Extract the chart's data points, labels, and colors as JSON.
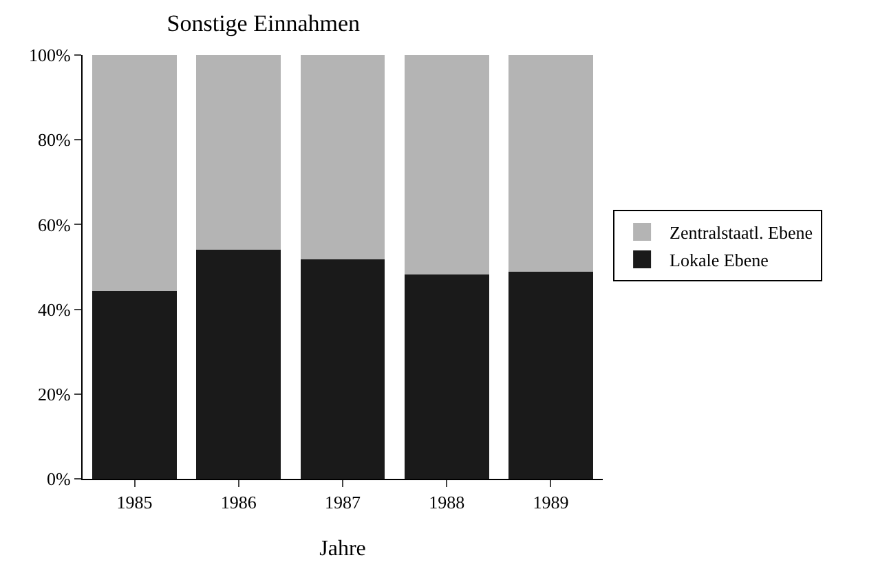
{
  "chart_data": {
    "type": "bar",
    "title": "Sonstige Einnahmen",
    "xlabel": "Jahre",
    "stacked": true,
    "categories": [
      "1985",
      "1986",
      "1987",
      "1988",
      "1989"
    ],
    "series": [
      {
        "name": "Lokale Ebene",
        "color": "#1a1a1a",
        "values": [
          44.5,
          54.2,
          51.9,
          48.4,
          49.0
        ]
      },
      {
        "name": "Zentralstaatl. Ebene",
        "color": "#b4b4b4",
        "values": [
          55.5,
          45.8,
          48.1,
          51.6,
          51.0
        ]
      }
    ],
    "ylim": [
      0,
      100
    ],
    "yticks": [
      {
        "value": 0,
        "label": "0%"
      },
      {
        "value": 20,
        "label": "20%"
      },
      {
        "value": 40,
        "label": "40%"
      },
      {
        "value": 60,
        "label": "60%"
      },
      {
        "value": 80,
        "label": "80%"
      },
      {
        "value": 100,
        "label": "100%"
      }
    ],
    "legend": "right"
  }
}
